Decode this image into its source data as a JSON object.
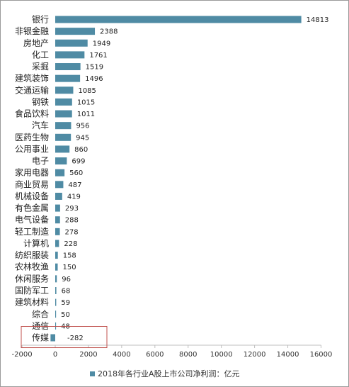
{
  "chart_data": {
    "type": "bar",
    "orientation": "horizontal",
    "categories": [
      "银行",
      "非银金融",
      "房地产",
      "化工",
      "采掘",
      "建筑装饰",
      "交通运输",
      "钢铁",
      "食品饮料",
      "汽车",
      "医药生物",
      "公用事业",
      "电子",
      "家用电器",
      "商业贸易",
      "机械设备",
      "有色金属",
      "电气设备",
      "轻工制造",
      "计算机",
      "纺织服装",
      "农林牧渔",
      "休闲服务",
      "国防军工",
      "建筑材料",
      "综合",
      "通信",
      "传媒"
    ],
    "series": [
      {
        "name": "2018年各行业A股上市公司净利润：亿元",
        "values": [
          14813,
          2388,
          1949,
          1761,
          1519,
          1496,
          1085,
          1015,
          1011,
          956,
          945,
          860,
          699,
          560,
          487,
          419,
          293,
          288,
          278,
          228,
          158,
          150,
          96,
          68,
          59,
          50,
          48,
          -282
        ],
        "data_labels": [
          "14813",
          "2388",
          "1949",
          "1761",
          "1519",
          "1496",
          "1085",
          "1015",
          "1011",
          "956",
          "945",
          "860",
          "699",
          "560",
          "487",
          "419",
          "293",
          "288",
          "278",
          "228",
          "158",
          "150",
          "96",
          "68",
          "59",
          "50",
          "48",
          "-282"
        ]
      }
    ],
    "x_ticks": [
      "-2000",
      "0",
      "2000",
      "4000",
      "6000",
      "8000",
      "10000",
      "12000",
      "14000",
      "16000"
    ],
    "xlim": [
      -2000,
      16000
    ],
    "grid": false,
    "legend": {
      "position": "bottom",
      "label": "2018年各行业A股上市公司净利润：亿元"
    },
    "highlight_category": "传媒",
    "colors": {
      "bar": "#4f8ba4",
      "highlight_box": "#c0504d",
      "axis": "#bfbfbf"
    }
  }
}
